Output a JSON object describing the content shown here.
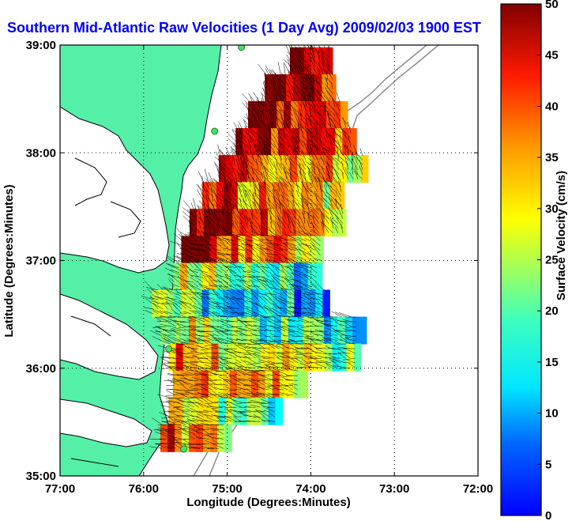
{
  "chart_data": {
    "type": "heatmap",
    "title": "Southern Mid-Atlantic Raw Velocities (1 Day Avg) 2009/02/03 1900 EST",
    "xlabel": "Longitude (Degrees:Minutes)",
    "ylabel": "Latitude (Degrees:Minutes)",
    "colorbar_label": "Surface Velocity (cm/s)",
    "xlim": [
      -77,
      -72
    ],
    "ylim": [
      35,
      39
    ],
    "x_ticks": [
      {
        "value": -77,
        "label": "77:00"
      },
      {
        "value": -76,
        "label": "76:00"
      },
      {
        "value": -75,
        "label": "75:00"
      },
      {
        "value": -74,
        "label": "74:00"
      },
      {
        "value": -73,
        "label": "73:00"
      },
      {
        "value": -72,
        "label": "72:00"
      }
    ],
    "y_ticks": [
      {
        "value": 35,
        "label": "35:00"
      },
      {
        "value": 36,
        "label": "36:00"
      },
      {
        "value": 37,
        "label": "37:00"
      },
      {
        "value": 38,
        "label": "38:00"
      },
      {
        "value": 39,
        "label": "39:00"
      }
    ],
    "colorbar_range": [
      0,
      50
    ],
    "colorbar_ticks": [
      {
        "value": 0,
        "label": "0"
      },
      {
        "value": 5,
        "label": "5"
      },
      {
        "value": 10,
        "label": "10"
      },
      {
        "value": 15,
        "label": "15"
      },
      {
        "value": 20,
        "label": "20"
      },
      {
        "value": 25,
        "label": "25"
      },
      {
        "value": 30,
        "label": "30"
      },
      {
        "value": 35,
        "label": "35"
      },
      {
        "value": 40,
        "label": "40"
      },
      {
        "value": 45,
        "label": "45"
      },
      {
        "value": 50,
        "label": "50"
      }
    ],
    "grid": "dotted",
    "colormap": "jet",
    "land_color": "#55f0a8",
    "coastline_color": "#000000",
    "isobath_color": "#8c8c8c",
    "vector_color": "#000000",
    "stations": [
      {
        "lon": -74.83,
        "lat": 38.98
      },
      {
        "lon": -75.15,
        "lat": 38.2
      },
      {
        "lon": -75.7,
        "lat": 36.18
      },
      {
        "lon": -75.52,
        "lat": 35.25
      }
    ],
    "velocity_field": [
      {
        "lat": 38.85,
        "lon_from": -74.25,
        "lon_to": -73.75,
        "speed": 48
      },
      {
        "lat": 38.6,
        "lon_from": -74.55,
        "lon_to": -73.7,
        "speed": 45
      },
      {
        "lat": 38.35,
        "lon_from": -74.75,
        "lon_to": -73.6,
        "speed": 44
      },
      {
        "lat": 38.1,
        "lon_from": -74.9,
        "lon_to": -73.5,
        "speed": 42
      },
      {
        "lat": 37.85,
        "lon_from": -75.1,
        "lon_to": -73.35,
        "speed": 35
      },
      {
        "lat": 37.6,
        "lon_from": -75.3,
        "lon_to": -73.6,
        "speed": 36
      },
      {
        "lat": 37.35,
        "lon_from": -75.45,
        "lon_to": -73.6,
        "speed": 40
      },
      {
        "lat": 37.1,
        "lon_from": -75.55,
        "lon_to": -73.85,
        "speed": 38
      },
      {
        "lat": 36.85,
        "lon_from": -75.65,
        "lon_to": -73.9,
        "speed": 22
      },
      {
        "lat": 36.6,
        "lon_from": -75.9,
        "lon_to": -73.8,
        "speed": 18
      },
      {
        "lat": 36.35,
        "lon_from": -75.8,
        "lon_to": -73.4,
        "speed": 22
      },
      {
        "lat": 36.1,
        "lon_from": -75.7,
        "lon_to": -73.45,
        "speed": 30
      },
      {
        "lat": 35.85,
        "lon_from": -75.65,
        "lon_to": -74.1,
        "speed": 34
      },
      {
        "lat": 35.6,
        "lon_from": -75.7,
        "lon_to": -74.4,
        "speed": 26
      },
      {
        "lat": 35.35,
        "lon_from": -75.8,
        "lon_to": -75.0,
        "speed": 36
      }
    ]
  }
}
